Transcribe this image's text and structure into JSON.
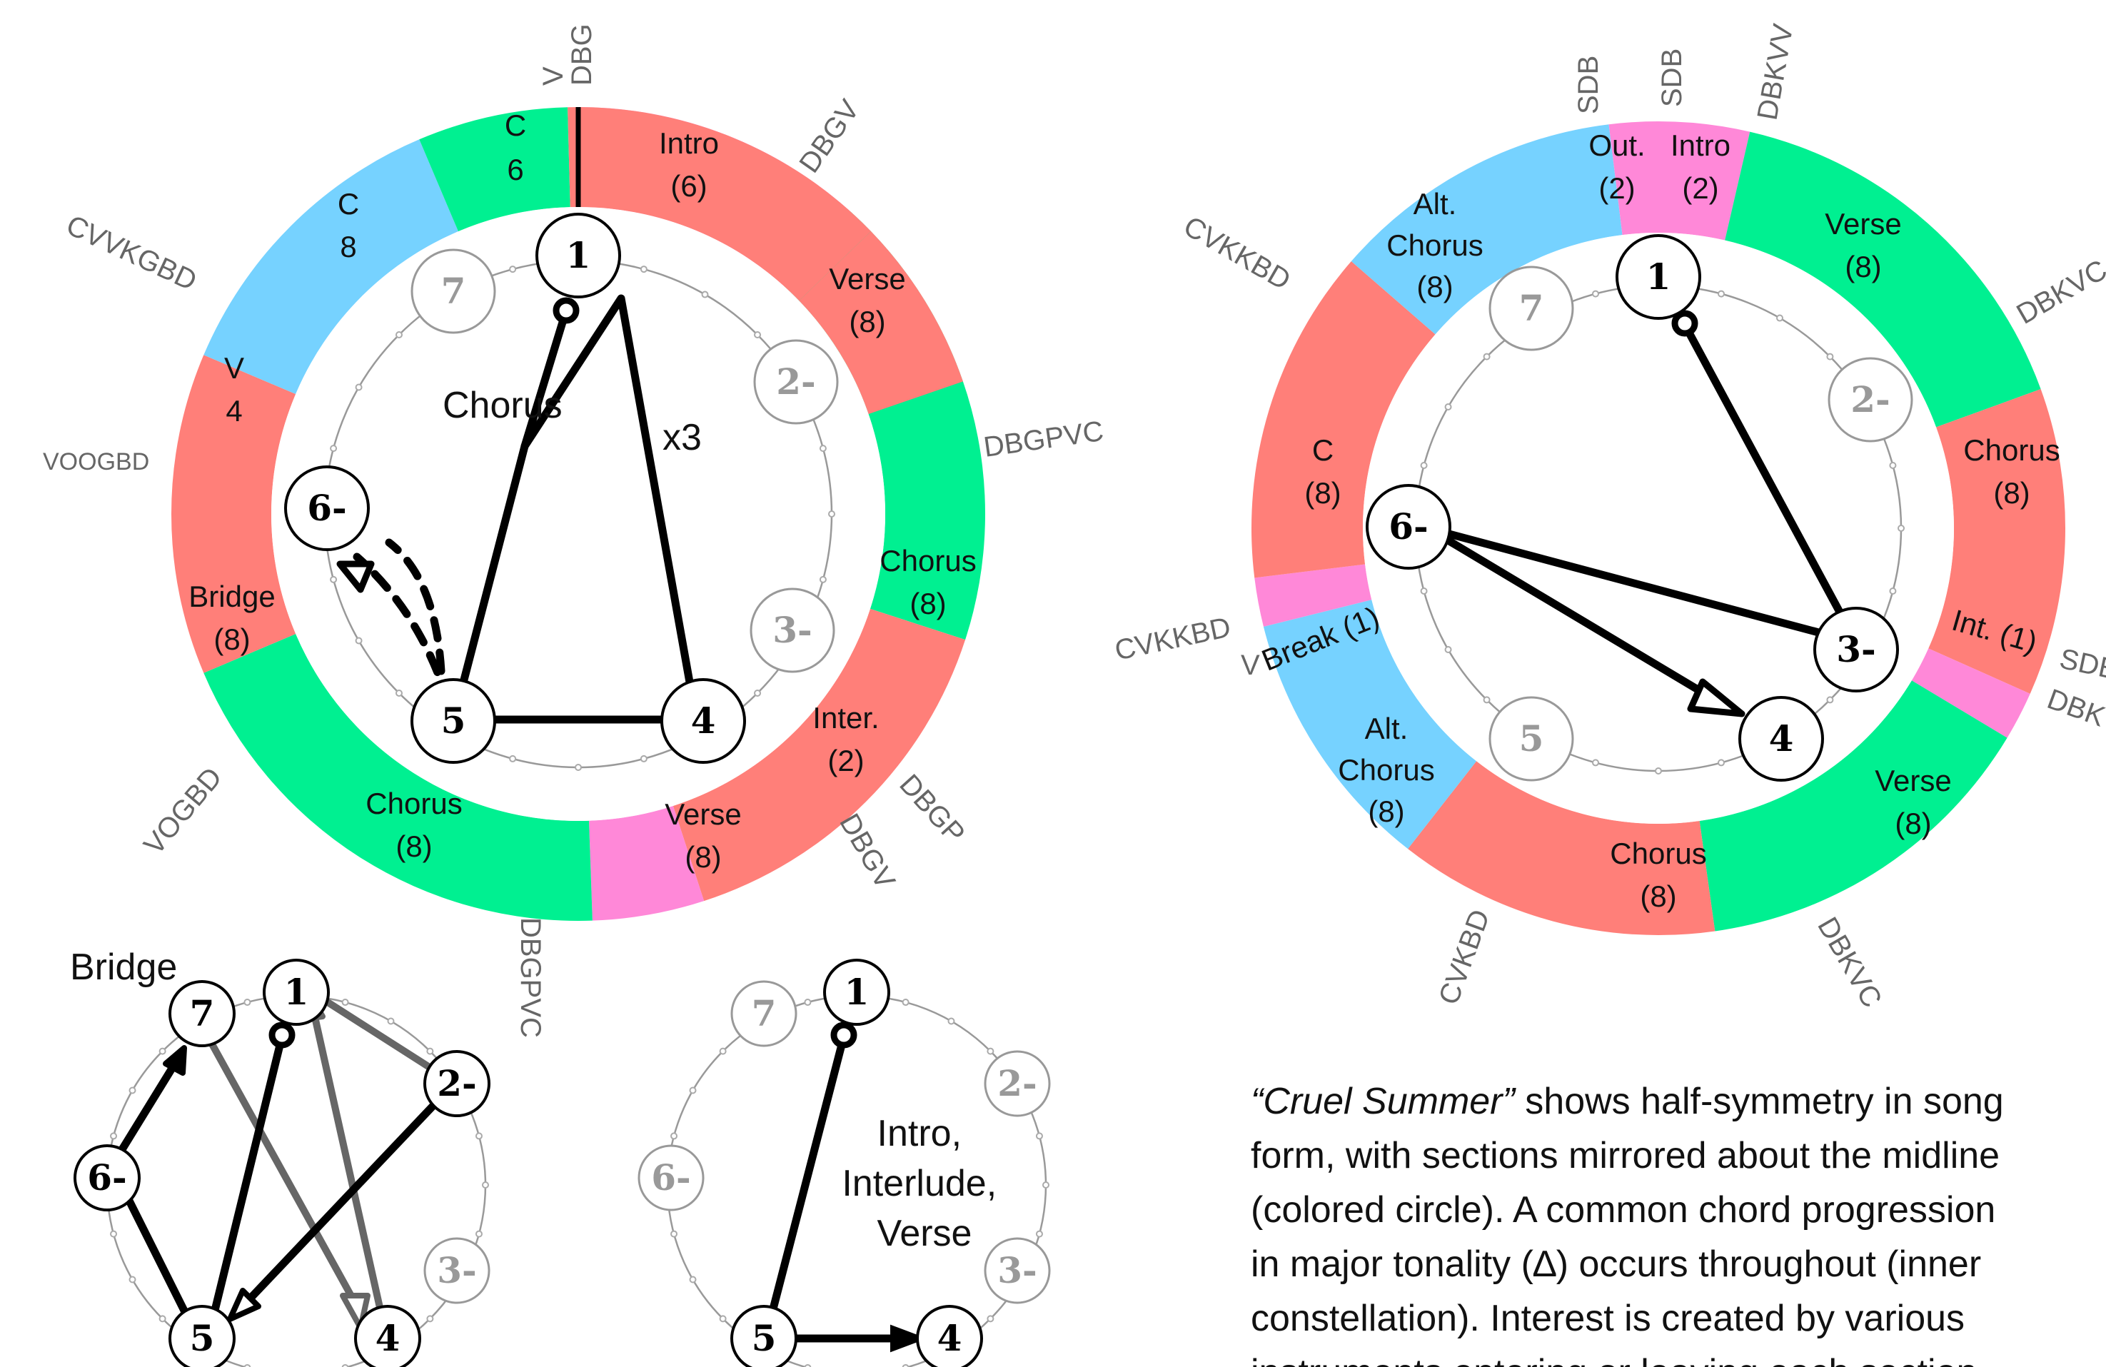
{
  "colors": {
    "chorus": "#FF7F79",
    "verse": "#00F091",
    "intro": "#FF88D8",
    "bridge": "#76D2FF",
    "node_active": "#000000",
    "node_inactive": "#999999",
    "arrow_gray": "#666666"
  },
  "left_wheel": {
    "segments": [
      {
        "id": "intro",
        "label": "Intro",
        "sub": "(6)",
        "type": "intro"
      },
      {
        "id": "verse1",
        "label": "Verse",
        "sub": "(8)",
        "type": "verse"
      },
      {
        "id": "chorus1",
        "label": "Chorus",
        "sub": "(8)",
        "type": "chorus"
      },
      {
        "id": "inter",
        "label": "Inter.",
        "sub": "(2)",
        "type": "intro"
      },
      {
        "id": "verse2",
        "label": "Verse",
        "sub": "(8)",
        "type": "verse"
      },
      {
        "id": "chorus2",
        "label": "Chorus",
        "sub": "(8)",
        "type": "chorus"
      },
      {
        "id": "bridge",
        "label": "Bridge",
        "sub": "(8)",
        "type": "bridge"
      },
      {
        "id": "v4",
        "label": "V",
        "sub": "4",
        "type": "verse"
      },
      {
        "id": "c8",
        "label": "C",
        "sub": "8",
        "type": "chorus"
      },
      {
        "id": "c6",
        "label": "C",
        "sub": "6",
        "type": "chorus"
      }
    ],
    "instrument_labels": [
      "DBG",
      "DBGV",
      "DBGPVC",
      "DBGP",
      "DBGV",
      "DBGPVC",
      "VOGBD",
      "VOOGBD",
      "CVVKGBD",
      "V"
    ],
    "center_label": "Chorus",
    "repeat_label": "x3",
    "nodes": [
      {
        "label": "1",
        "active": true
      },
      {
        "label": "2-",
        "active": false
      },
      {
        "label": "3-",
        "active": false
      },
      {
        "label": "4",
        "active": true
      },
      {
        "label": "5",
        "active": true
      },
      {
        "label": "6-",
        "active": true
      },
      {
        "label": "7",
        "active": false
      }
    ]
  },
  "right_wheel": {
    "segments": [
      {
        "id": "intro",
        "label": "Intro",
        "sub": "(2)",
        "type": "intro"
      },
      {
        "id": "verse1",
        "label": "Verse",
        "sub": "(8)",
        "type": "verse"
      },
      {
        "id": "chorus1",
        "label": "Chorus",
        "sub": "(8)",
        "type": "chorus"
      },
      {
        "id": "int",
        "label": "Int.",
        "sub": "(1)",
        "type": "intro"
      },
      {
        "id": "verse2",
        "label": "Verse",
        "sub": "(8)",
        "type": "verse"
      },
      {
        "id": "chorus2",
        "label": "Chorus",
        "sub": "(8)",
        "type": "chorus"
      },
      {
        "id": "altchorus1",
        "label": "Alt.",
        "label2": "Chorus",
        "sub": "(8)",
        "type": "bridge"
      },
      {
        "id": "break",
        "label": "Break",
        "sub": "(1)",
        "type": "intro"
      },
      {
        "id": "c8",
        "label": "C",
        "sub": "(8)",
        "type": "chorus"
      },
      {
        "id": "altchorus2",
        "label": "Alt.",
        "label2": "Chorus",
        "sub": "(8)",
        "type": "bridge"
      },
      {
        "id": "out",
        "label": "Out.",
        "sub": "(2)",
        "type": "intro"
      }
    ],
    "instrument_labels": [
      "SDB",
      "SDB",
      "DBKVV",
      "DBKVC",
      "SDB",
      "DBK",
      "DBKVC",
      "CVKBD",
      "CVKKBD",
      "V",
      "CVKKBD"
    ],
    "nodes": [
      {
        "label": "1",
        "active": true
      },
      {
        "label": "2-",
        "active": false
      },
      {
        "label": "3-",
        "active": true
      },
      {
        "label": "4",
        "active": true
      },
      {
        "label": "5",
        "active": false
      },
      {
        "label": "6-",
        "active": true
      },
      {
        "label": "7",
        "active": false
      }
    ]
  },
  "bridge_panel": {
    "title": "Bridge",
    "nodes": [
      {
        "label": "1",
        "active": true
      },
      {
        "label": "2-",
        "active": true
      },
      {
        "label": "3-",
        "active": false
      },
      {
        "label": "4",
        "active": true
      },
      {
        "label": "5",
        "active": true
      },
      {
        "label": "6-",
        "active": true
      },
      {
        "label": "7",
        "active": true
      }
    ]
  },
  "intro_panel": {
    "label_lines": [
      "Intro,",
      "Interlude,",
      "Verse"
    ],
    "nodes": [
      {
        "label": "1",
        "active": true
      },
      {
        "label": "2-",
        "active": false
      },
      {
        "label": "3-",
        "active": false
      },
      {
        "label": "4",
        "active": true
      },
      {
        "label": "5",
        "active": true
      },
      {
        "label": "6-",
        "active": false
      },
      {
        "label": "7",
        "active": false
      }
    ]
  },
  "caption": {
    "title_italic": "“Cruel Summer”",
    "line1_rest": " shows half-symmetry in song",
    "line2": "form, with sections mirrored about the midline",
    "line3": "(colored circle).  A common chord progression",
    "line4_a": "in major tonality (",
    "line4_sym": "∆",
    "line4_b": ") occurs throughout (inner",
    "line5": "constellation).  Interest is created by various",
    "line6": "instruments entering or leaving each section."
  }
}
